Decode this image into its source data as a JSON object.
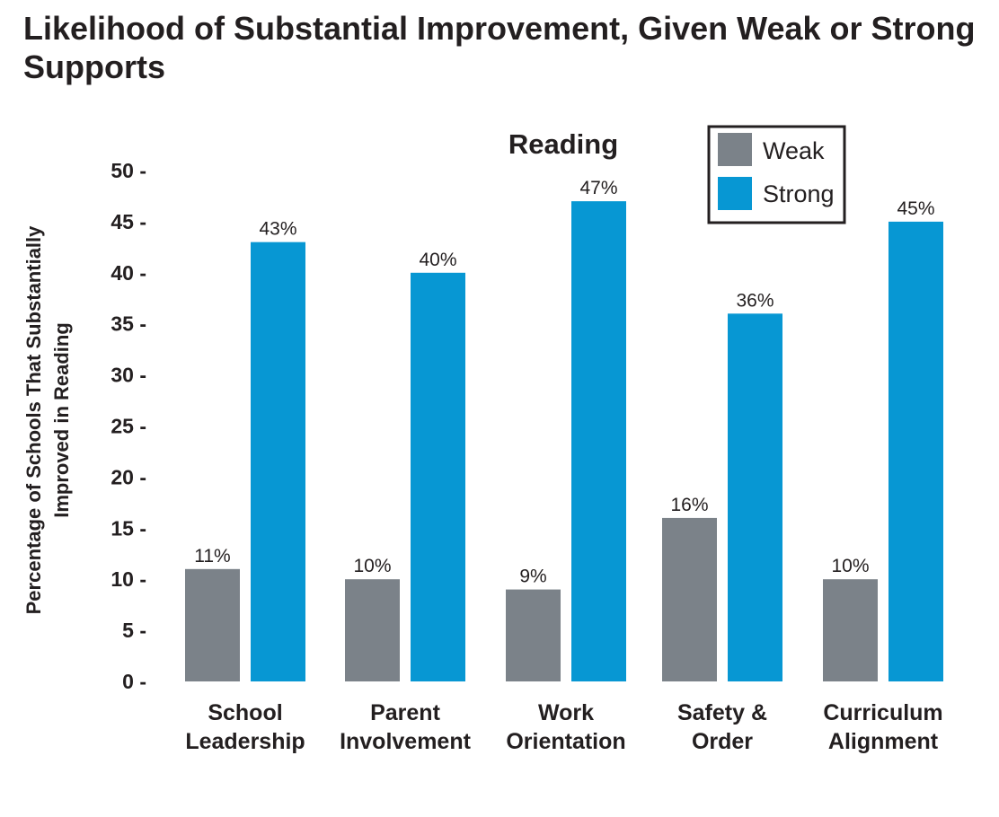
{
  "chart_data": {
    "type": "bar",
    "title": "Likelihood of Substantial Improvement, Given Weak or Strong Supports",
    "subtitle": "Reading",
    "xlabel": "",
    "ylabel": "Percentage of Schools That Substantially Improved in Reading",
    "ylabel_lines": [
      "Percentage of Schools That Substantially",
      "Improved in Reading"
    ],
    "ylim": [
      0,
      50
    ],
    "yticks": [
      0,
      5,
      10,
      15,
      20,
      25,
      30,
      35,
      40,
      45,
      50
    ],
    "grid": false,
    "legend_position": "top-right",
    "categories": [
      [
        "School",
        "Leadership"
      ],
      [
        "Parent",
        "Involvement"
      ],
      [
        "Work",
        "Orientation"
      ],
      [
        "Safety &",
        "Order"
      ],
      [
        "Curriculum",
        "Alignment"
      ]
    ],
    "series": [
      {
        "name": "Weak",
        "color": "#7b8289",
        "values": [
          11,
          10,
          9,
          16,
          10
        ],
        "labels": [
          "11%",
          "10%",
          "9%",
          "16%",
          "10%"
        ]
      },
      {
        "name": "Strong",
        "color": "#0797d3",
        "values": [
          43,
          40,
          47,
          36,
          45
        ],
        "labels": [
          "43%",
          "40%",
          "47%",
          "36%",
          "45%"
        ]
      }
    ]
  }
}
